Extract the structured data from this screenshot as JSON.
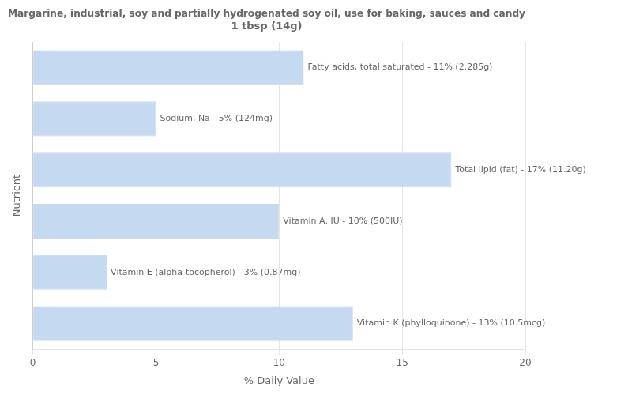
{
  "chart_data": {
    "type": "bar",
    "orientation": "horizontal",
    "title": "Margarine, industrial, soy and partially hydrogenated soy oil, use for baking, sauces and candy\n1 tbsp (14g)",
    "xlabel": "% Daily Value",
    "ylabel": "Nutrient",
    "categories": [
      "Fatty acids, total saturated - 11% (2.285g)",
      "Sodium, Na - 5% (124mg)",
      "Total lipid (fat) - 17% (11.20g)",
      "Vitamin A, IU - 10% (500IU)",
      "Vitamin E (alpha-tocopherol) - 3% (0.87mg)",
      "Vitamin K (phylloquinone) - 13% (10.5mcg)"
    ],
    "values": [
      11,
      5,
      17,
      10,
      3,
      13
    ],
    "color": "#c5d9f1",
    "xlim": [
      0,
      20
    ],
    "xticks": [
      0,
      5,
      10,
      15,
      20
    ],
    "grid": true,
    "tick_labels": "x"
  }
}
